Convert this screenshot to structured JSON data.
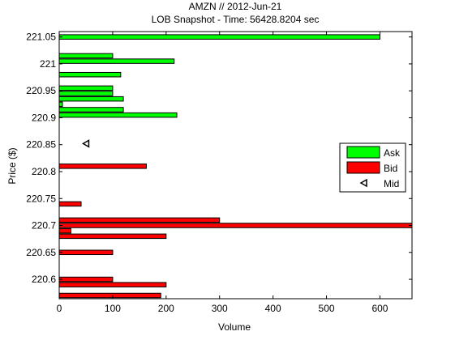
{
  "chart_data": {
    "type": "bar",
    "orientation": "horizontal",
    "title": "AMZN // 2012-Jun-21",
    "subtitle": "LOB Snapshot - Time: 56428.8204 sec",
    "xlabel": "Volume",
    "ylabel": "Price ($)",
    "xlim": [
      0,
      660
    ],
    "ylim": [
      220.564,
      221.06
    ],
    "xticks": [
      "0",
      "100",
      "200",
      "300",
      "400",
      "500",
      "600"
    ],
    "yticks": [
      "220.6",
      "220.65",
      "220.7",
      "220.75",
      "220.8",
      "220.85",
      "220.9",
      "220.95",
      "221",
      "221.05"
    ],
    "grid": false,
    "legend": {
      "position": "right",
      "entries": [
        "Ask",
        "Bid",
        "Mid"
      ]
    },
    "colors": {
      "ask": "#00ff00",
      "bid": "#ff0000",
      "edge": "#000000"
    },
    "series": [
      {
        "name": "Ask",
        "points": [
          {
            "price": 221.05,
            "volume": 600
          },
          {
            "price": 221.015,
            "volume": 100
          },
          {
            "price": 221.005,
            "volume": 215
          },
          {
            "price": 220.98,
            "volume": 115
          },
          {
            "price": 220.955,
            "volume": 100
          },
          {
            "price": 220.945,
            "volume": 100
          },
          {
            "price": 220.935,
            "volume": 120
          },
          {
            "price": 220.925,
            "volume": 6
          },
          {
            "price": 220.915,
            "volume": 120
          },
          {
            "price": 220.905,
            "volume": 220
          }
        ]
      },
      {
        "name": "Bid",
        "points": [
          {
            "price": 220.81,
            "volume": 163
          },
          {
            "price": 220.74,
            "volume": 41
          },
          {
            "price": 220.71,
            "volume": 300
          },
          {
            "price": 220.7,
            "volume": 660
          },
          {
            "price": 220.69,
            "volume": 22
          },
          {
            "price": 220.68,
            "volume": 200
          },
          {
            "price": 220.65,
            "volume": 100
          },
          {
            "price": 220.6,
            "volume": 100
          },
          {
            "price": 220.59,
            "volume": 200
          },
          {
            "price": 220.57,
            "volume": 190
          }
        ]
      },
      {
        "name": "Mid",
        "points": [
          {
            "price": 220.852,
            "volume": 50
          }
        ]
      }
    ]
  }
}
